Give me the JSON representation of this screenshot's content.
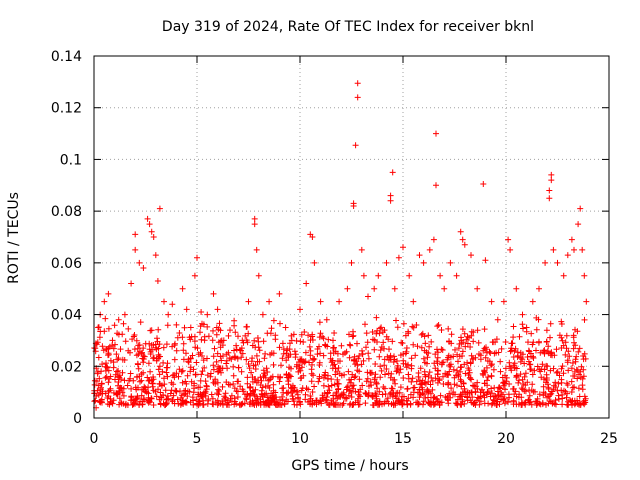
{
  "chart_data": {
    "type": "scatter",
    "title": "Day 319 of 2024, Rate Of TEC Index for receiver bknl",
    "xlabel": "GPS time / hours",
    "ylabel": "ROTI / TECUs",
    "xlim": [
      0,
      25
    ],
    "ylim": [
      0,
      0.14
    ],
    "xticks": [
      0,
      5,
      10,
      15,
      20,
      25
    ],
    "xtick_labels": [
      "0",
      "5",
      "10",
      "15",
      "20",
      "25"
    ],
    "yticks": [
      0,
      0.02,
      0.04,
      0.06,
      0.08,
      0.1,
      0.12,
      0.14
    ],
    "ytick_labels": [
      "0",
      "0.02",
      "0.04",
      "0.06",
      "0.08",
      "0.1",
      "0.12",
      "0.14"
    ],
    "grid": true,
    "marker": "plus",
    "color": "#ff0000",
    "series": [
      {
        "points": [
          [
            0.1,
            0.004
          ],
          [
            0.2,
            0.035
          ],
          [
            0.3,
            0.04
          ],
          [
            0.5,
            0.045
          ],
          [
            0.7,
            0.048
          ],
          [
            0.9,
            0.03
          ],
          [
            1.2,
            0.038
          ],
          [
            1.5,
            0.04
          ],
          [
            1.8,
            0.052
          ],
          [
            2.0,
            0.065
          ],
          [
            2.0,
            0.071
          ],
          [
            2.2,
            0.06
          ],
          [
            2.4,
            0.058
          ],
          [
            2.6,
            0.077
          ],
          [
            2.7,
            0.075
          ],
          [
            2.8,
            0.072
          ],
          [
            2.9,
            0.07
          ],
          [
            3.0,
            0.063
          ],
          [
            3.1,
            0.053
          ],
          [
            3.2,
            0.081
          ],
          [
            3.4,
            0.045
          ],
          [
            3.6,
            0.04
          ],
          [
            3.8,
            0.044
          ],
          [
            4.0,
            0.036
          ],
          [
            4.3,
            0.05
          ],
          [
            4.5,
            0.042
          ],
          [
            4.7,
            0.035
          ],
          [
            4.9,
            0.055
          ],
          [
            5.0,
            0.062
          ],
          [
            5.2,
            0.041
          ],
          [
            5.5,
            0.04
          ],
          [
            5.8,
            0.048
          ],
          [
            6.0,
            0.042
          ],
          [
            6.3,
            0.03
          ],
          [
            6.6,
            0.034
          ],
          [
            6.9,
            0.028
          ],
          [
            7.2,
            0.03
          ],
          [
            7.5,
            0.045
          ],
          [
            7.8,
            0.075
          ],
          [
            7.8,
            0.077
          ],
          [
            7.9,
            0.065
          ],
          [
            8.0,
            0.055
          ],
          [
            8.2,
            0.04
          ],
          [
            8.5,
            0.045
          ],
          [
            8.8,
            0.032
          ],
          [
            9.0,
            0.048
          ],
          [
            9.3,
            0.035
          ],
          [
            9.6,
            0.03
          ],
          [
            10.0,
            0.042
          ],
          [
            10.3,
            0.052
          ],
          [
            10.5,
            0.071
          ],
          [
            10.6,
            0.07
          ],
          [
            10.7,
            0.06
          ],
          [
            11.0,
            0.045
          ],
          [
            11.3,
            0.038
          ],
          [
            11.6,
            0.03
          ],
          [
            11.9,
            0.045
          ],
          [
            12.3,
            0.05
          ],
          [
            12.5,
            0.06
          ],
          [
            12.6,
            0.083
          ],
          [
            12.6,
            0.082
          ],
          [
            12.7,
            0.1055
          ],
          [
            12.8,
            0.124
          ],
          [
            12.8,
            0.1295
          ],
          [
            13.0,
            0.065
          ],
          [
            13.1,
            0.055
          ],
          [
            13.3,
            0.047
          ],
          [
            13.6,
            0.05
          ],
          [
            13.8,
            0.055
          ],
          [
            14.2,
            0.06
          ],
          [
            14.4,
            0.084
          ],
          [
            14.4,
            0.086
          ],
          [
            14.5,
            0.095
          ],
          [
            14.6,
            0.05
          ],
          [
            14.8,
            0.062
          ],
          [
            15.0,
            0.066
          ],
          [
            15.3,
            0.055
          ],
          [
            15.5,
            0.045
          ],
          [
            15.8,
            0.063
          ],
          [
            16.0,
            0.06
          ],
          [
            16.3,
            0.065
          ],
          [
            16.5,
            0.069
          ],
          [
            16.6,
            0.09
          ],
          [
            16.6,
            0.11
          ],
          [
            16.8,
            0.055
          ],
          [
            17.0,
            0.05
          ],
          [
            17.3,
            0.06
          ],
          [
            17.6,
            0.055
          ],
          [
            17.8,
            0.072
          ],
          [
            17.9,
            0.069
          ],
          [
            18.0,
            0.067
          ],
          [
            18.3,
            0.063
          ],
          [
            18.6,
            0.05
          ],
          [
            18.9,
            0.0905
          ],
          [
            19.0,
            0.061
          ],
          [
            19.3,
            0.045
          ],
          [
            19.6,
            0.038
          ],
          [
            19.9,
            0.045
          ],
          [
            20.1,
            0.069
          ],
          [
            20.2,
            0.065
          ],
          [
            20.5,
            0.05
          ],
          [
            20.8,
            0.04
          ],
          [
            21.0,
            0.035
          ],
          [
            21.3,
            0.045
          ],
          [
            21.6,
            0.05
          ],
          [
            21.9,
            0.06
          ],
          [
            22.1,
            0.085
          ],
          [
            22.1,
            0.088
          ],
          [
            22.2,
            0.094
          ],
          [
            22.2,
            0.092
          ],
          [
            22.3,
            0.065
          ],
          [
            22.5,
            0.06
          ],
          [
            22.8,
            0.055
          ],
          [
            23.0,
            0.063
          ],
          [
            23.2,
            0.069
          ],
          [
            23.3,
            0.065
          ],
          [
            23.5,
            0.075
          ],
          [
            23.6,
            0.081
          ],
          [
            23.7,
            0.065
          ],
          [
            23.8,
            0.055
          ],
          [
            23.9,
            0.045
          ]
        ],
        "dense_band": {
          "x_range": [
            0,
            24
          ],
          "floor": 0.005,
          "ceiling_base": 0.028,
          "point_count": 1800
        }
      }
    ]
  }
}
